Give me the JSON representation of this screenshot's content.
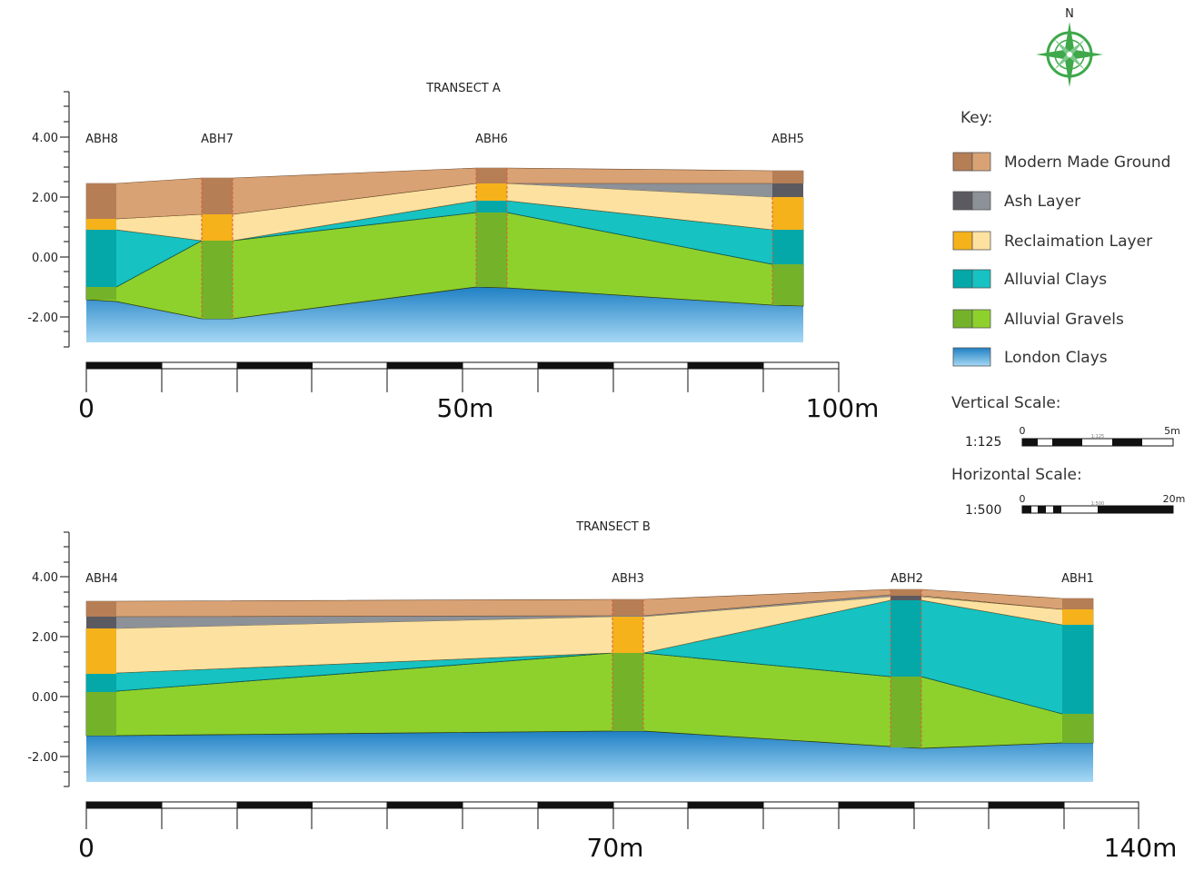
{
  "compass": {
    "north_label": "N"
  },
  "colors": {
    "made_ground_dark": "#b57e55",
    "made_ground_light": "#d9a274",
    "ash_dark": "#5a5a60",
    "ash_light": "#8d9198",
    "recl_dark": "#f5b21b",
    "recl_light": "#fde1a0",
    "clay_dark": "#04a8a8",
    "clay_light": "#16c2c2",
    "gravel_dark": "#74b22a",
    "gravel_light": "#8ed12c",
    "london_top": "#1f80c4",
    "london_bottom": "#9ed4f2",
    "compass": "#3ea84a"
  },
  "key": {
    "title": "Key:",
    "items": [
      {
        "label": "Modern Made Ground",
        "id": "made"
      },
      {
        "label": "Ash Layer",
        "id": "ash"
      },
      {
        "label": "Reclaimation Layer",
        "id": "recl"
      },
      {
        "label": "Alluvial Clays",
        "id": "clay"
      },
      {
        "label": "Alluvial Gravels",
        "id": "gravel"
      },
      {
        "label": "London Clays",
        "id": "london"
      }
    ],
    "vertical_scale": {
      "title": "Vertical Scale:",
      "ratio": "1:125",
      "start": "0",
      "end": "5m",
      "mid": "1:125"
    },
    "horizontal_scale": {
      "title": "Horizontal Scale:",
      "ratio": "1:500",
      "start": "0",
      "end": "20m",
      "mid": "1:500"
    }
  },
  "transect_a": {
    "title": "TRANSECT A",
    "y_ticks": [
      "4.00",
      "2.00",
      "0.00",
      "-2.00"
    ],
    "boreholes": [
      "ABH8",
      "ABH7",
      "ABH6",
      "ABH5"
    ],
    "scale_labels": [
      "0",
      "50m",
      "100m"
    ]
  },
  "transect_b": {
    "title": "TRANSECT B",
    "y_ticks": [
      "4.00",
      "2.00",
      "0.00",
      "-2.00"
    ],
    "boreholes": [
      "ABH4",
      "ABH3",
      "ABH2",
      "ABH1"
    ],
    "scale_labels": [
      "0",
      "70m",
      "140m"
    ]
  }
}
